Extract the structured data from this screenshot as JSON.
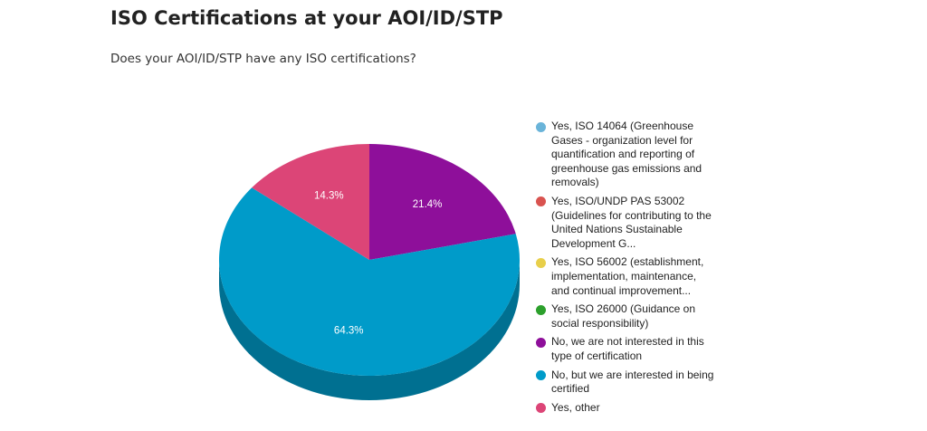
{
  "header": {
    "title": "ISO Certifications at your AOI/ID/STP",
    "question": "Does your AOI/ID/STP have any ISO certifications?"
  },
  "chart_data": {
    "type": "pie",
    "style": "3d",
    "legend_position": "right",
    "slices": [
      {
        "label": "Yes, ISO 14064 (Greenhouse Gases - organization level for quantification and reporting of greenhouse gas emissions and removals)",
        "value": 0,
        "color": "#6ab4d9"
      },
      {
        "label": "Yes, ISO/UNDP PAS 53002 (Guidelines for contributing to the United Nations Sustainable Development G...",
        "value": 0,
        "color": "#d9534f"
      },
      {
        "label": "Yes, ISO 56002 (establishment, implementation, maintenance, and continual improvement...",
        "value": 0,
        "color": "#e8cf4a"
      },
      {
        "label": "Yes, ISO 26000 (Guidance on social responsibility)",
        "value": 0,
        "color": "#2ca02c"
      },
      {
        "label": "No, we are not interested in this type of certification",
        "value": 21.4,
        "display": "21.4%",
        "color": "#8e0f9a"
      },
      {
        "label": "No, but we are interested in being certified",
        "value": 64.3,
        "display": "64.3%",
        "color": "#009bc9"
      },
      {
        "label": "Yes, other",
        "value": 14.3,
        "display": "14.3%",
        "color": "#dc4577"
      }
    ]
  }
}
